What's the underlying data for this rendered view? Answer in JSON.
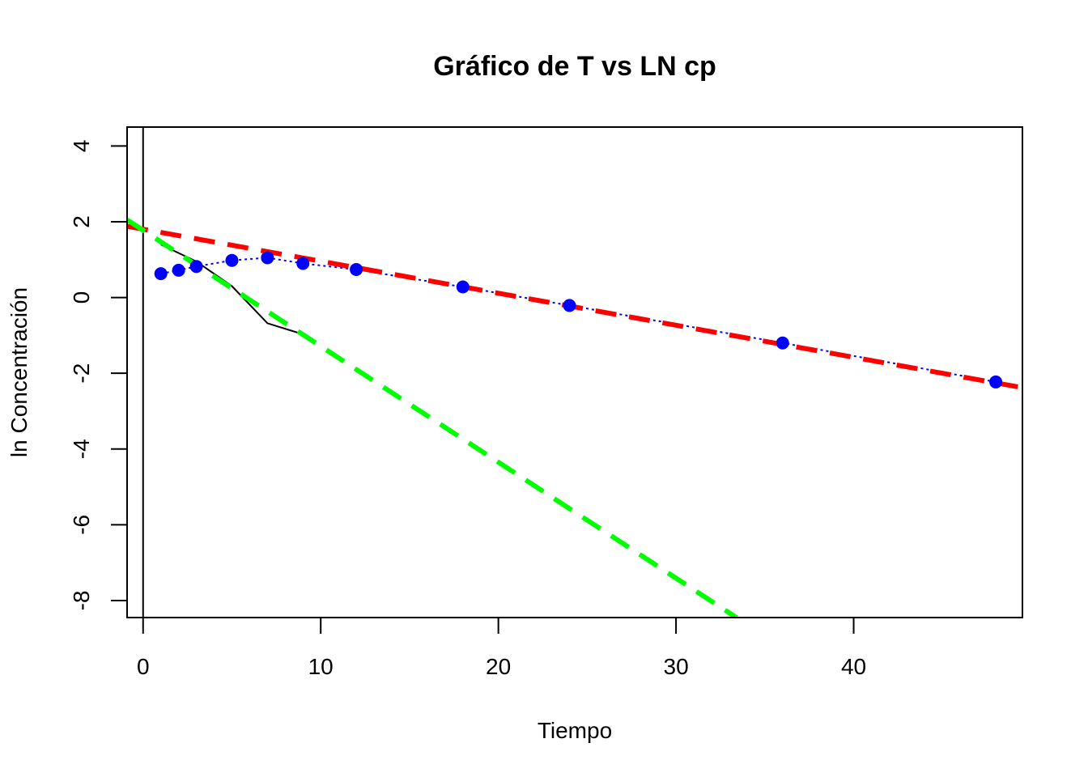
{
  "chart_data": {
    "type": "line",
    "title": "Gráfico de T vs LN cp",
    "xlabel": "Tiempo",
    "ylabel": "ln Concentración",
    "xlim": [
      -0.9,
      49.5
    ],
    "ylim": [
      -8.45,
      4.5
    ],
    "x_ticks": [
      0,
      10,
      20,
      30,
      40
    ],
    "y_ticks": [
      -8,
      -6,
      -4,
      -2,
      0,
      2,
      4
    ],
    "grid": false,
    "legend": "none",
    "vline_x": 0,
    "series": [
      {
        "style": "points-dotted-line",
        "color": "#0000ff",
        "x": [
          1,
          2,
          3,
          5,
          7,
          9,
          12,
          18,
          24,
          36,
          48
        ],
        "y": [
          0.63,
          0.72,
          0.82,
          0.98,
          1.05,
          0.9,
          0.74,
          0.28,
          -0.21,
          -1.2,
          -2.23
        ]
      },
      {
        "style": "solid-line",
        "color": "#000000",
        "x": [
          1,
          3,
          5,
          7,
          9
        ],
        "y": [
          1.4,
          0.95,
          0.3,
          -0.68,
          -0.97
        ]
      },
      {
        "style": "dashed-line",
        "color": "#ff0000",
        "x": [
          -0.9,
          49.5
        ],
        "y": [
          1.88,
          -2.38
        ]
      },
      {
        "style": "dashed-line",
        "color": "#00ff00",
        "x": [
          -0.9,
          33.4
        ],
        "y": [
          2.05,
          -8.45
        ]
      }
    ]
  }
}
